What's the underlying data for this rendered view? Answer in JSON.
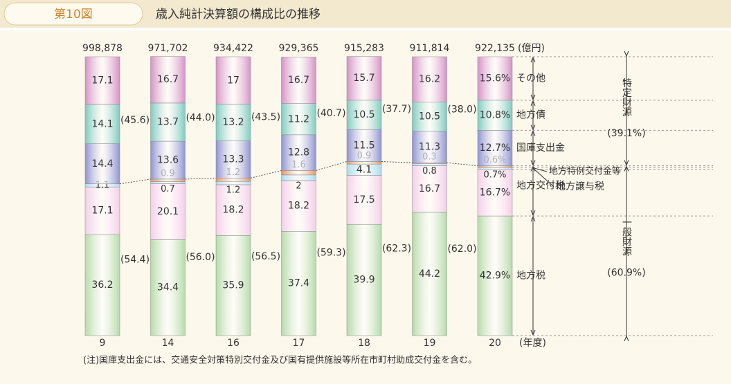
{
  "header": {
    "figure": "第10図",
    "title": "歳入純計決算額の構成比の推移"
  },
  "chart_data": {
    "type": "stacked_bar",
    "categories": [
      "9",
      "14",
      "16",
      "17",
      "18",
      "19",
      "20"
    ],
    "x_unit": "(年度)",
    "total_unit": "(億円)",
    "totals": [
      {
        "value": 998878,
        "label": "998,878"
      },
      {
        "value": 971702,
        "label": "971,702"
      },
      {
        "value": 934422,
        "label": "934,422"
      },
      {
        "value": 929365,
        "label": "929,365"
      },
      {
        "value": 915283,
        "label": "915,283"
      },
      {
        "value": 911814,
        "label": "911,814"
      },
      {
        "value": 922135,
        "label": "922,135"
      }
    ],
    "ylim": [
      0,
      100
    ],
    "series": [
      {
        "name": "地方税",
        "color": "#b5dba9",
        "values": [
          36.2,
          34.4,
          35.9,
          37.4,
          39.9,
          44.2,
          42.9
        ],
        "value_labels": [
          null,
          null,
          null,
          null,
          null,
          null,
          "42.9%"
        ]
      },
      {
        "name": "地方交付税",
        "color": "#f3cfe9",
        "values": [
          17.1,
          20.1,
          18.2,
          18.2,
          17.5,
          16.7,
          16.7
        ],
        "value_labels": [
          null,
          null,
          null,
          null,
          null,
          null,
          "16.7%"
        ]
      },
      {
        "name": "地方譲与税",
        "color": "#a9daf3",
        "values": [
          1.1,
          0.7,
          1.2,
          2.0,
          4.1,
          0.8,
          0.7
        ],
        "value_labels": [
          null,
          null,
          null,
          null,
          null,
          null,
          "0.7%"
        ]
      },
      {
        "name": "地方特例交付金等",
        "color": "#e8935e",
        "values": [
          null,
          0.9,
          1.2,
          1.6,
          0.9,
          0.3,
          0.6
        ],
        "value_labels": [
          null,
          null,
          null,
          null,
          null,
          null,
          "0.6%"
        ]
      },
      {
        "name": "国庫支出金",
        "color": "#8f93d3",
        "values": [
          14.4,
          13.6,
          13.3,
          12.8,
          11.5,
          11.3,
          12.7
        ],
        "value_labels": [
          null,
          null,
          null,
          null,
          null,
          null,
          "12.7%"
        ]
      },
      {
        "name": "地方債",
        "color": "#7fcbbf",
        "values": [
          14.1,
          13.7,
          13.2,
          11.2,
          10.5,
          10.5,
          10.8
        ],
        "value_labels": [
          null,
          null,
          null,
          null,
          null,
          null,
          "10.8%"
        ]
      },
      {
        "name": "その他",
        "color": "#d592c6",
        "values": [
          17.1,
          16.7,
          17.0,
          16.7,
          15.7,
          16.2,
          15.6
        ],
        "value_labels": [
          null,
          null,
          null,
          null,
          null,
          null,
          "15.6%"
        ]
      }
    ],
    "specific_share": [
      {
        "value": 45.6,
        "label": "(45.6)"
      },
      {
        "value": 44.0,
        "label": "(44.0)"
      },
      {
        "value": 43.5,
        "label": "(43.5)"
      },
      {
        "value": 40.7,
        "label": "(40.7)"
      },
      {
        "value": 37.7,
        "label": "(37.7)"
      },
      {
        "value": 38.0,
        "label": "(38.0)"
      },
      null
    ],
    "general_share": [
      {
        "value": 54.4,
        "label": "(54.4)"
      },
      {
        "value": 56.0,
        "label": "(56.0)"
      },
      {
        "value": 56.5,
        "label": "(56.5)"
      },
      {
        "value": 59.3,
        "label": "(59.3)"
      },
      {
        "value": 62.3,
        "label": "(62.3)"
      },
      {
        "value": 62.0,
        "label": "(62.0)"
      },
      null
    ],
    "groups": [
      {
        "name": "特定財源",
        "value": 39.1,
        "label": "(39.1%)"
      },
      {
        "name": "一般財源",
        "value": 60.9,
        "label": "(60.9%)"
      }
    ],
    "note": "(注)国庫支出金には、交通安全対策特別交付金及び国有提供施設等所在市町村助成交付金を含む。"
  }
}
